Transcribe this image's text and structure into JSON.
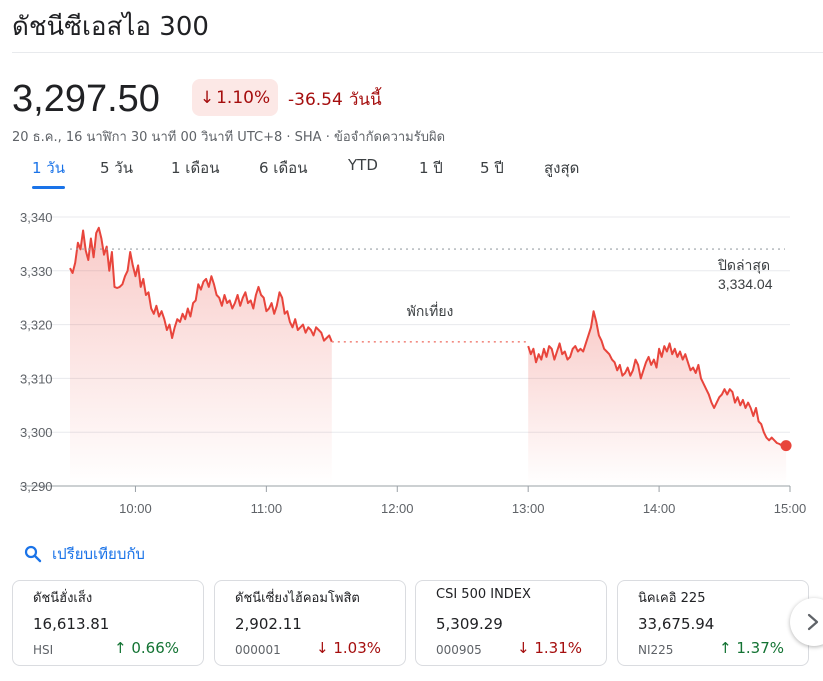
{
  "header": {
    "title": "ดัชนีซีเอสไอ 300",
    "price": "3,297.50",
    "change_pct": "1.10%",
    "change_abs": "-36.54",
    "change_period": "วันนี้",
    "meta": "20 ธ.ค., 16 นาฬิกา 30 นาที 00 วินาที UTC+8 · SHA · ข้อจำกัดความรับผิด"
  },
  "tabs": [
    {
      "label": "1 วัน",
      "active": true
    },
    {
      "label": "5 วัน",
      "active": false
    },
    {
      "label": "1 เดือน",
      "active": false
    },
    {
      "label": "6 เดือน",
      "active": false
    },
    {
      "label": "YTD",
      "active": false
    },
    {
      "label": "1 ปี",
      "active": false
    },
    {
      "label": "5 ปี",
      "active": false
    },
    {
      "label": "สูงสุด",
      "active": false
    }
  ],
  "colors": {
    "line": "#e8453c",
    "accent": "#1a73e8",
    "up": "#137333",
    "down": "#a50e0e"
  },
  "chart_data": {
    "type": "line",
    "ylim": [
      3290,
      3340
    ],
    "y_ticks": [
      "3,340",
      "3,330",
      "3,320",
      "3,310",
      "3,300",
      "3,290"
    ],
    "x_ticks": [
      "10:00",
      "11:00",
      "12:00",
      "13:00",
      "14:00",
      "15:00"
    ],
    "x_range_hours": [
      9.5,
      15.0
    ],
    "previous_close_label": "ปิดล่าสุด",
    "previous_close_value_text": "3,334.04",
    "previous_close": 3334.04,
    "break_label": "พักเที่ยง",
    "break_value": 3316.8,
    "series": [
      {
        "segment": "morning",
        "points": [
          [
            9.5,
            3330.5
          ],
          [
            9.52,
            3329.6
          ],
          [
            9.54,
            3331.5
          ],
          [
            9.56,
            3335.2
          ],
          [
            9.58,
            3334.0
          ],
          [
            9.6,
            3337.5
          ],
          [
            9.62,
            3333.8
          ],
          [
            9.64,
            3332.0
          ],
          [
            9.66,
            3336.0
          ],
          [
            9.68,
            3332.5
          ],
          [
            9.7,
            3337.0
          ],
          [
            9.72,
            3338.0
          ],
          [
            9.74,
            3336.0
          ],
          [
            9.76,
            3333.0
          ],
          [
            9.78,
            3334.5
          ],
          [
            9.8,
            3330.0
          ],
          [
            9.82,
            3333.5
          ],
          [
            9.84,
            3327.0
          ],
          [
            9.86,
            3326.8
          ],
          [
            9.88,
            3327.0
          ],
          [
            9.9,
            3327.5
          ],
          [
            9.92,
            3329.0
          ],
          [
            9.94,
            3330.0
          ],
          [
            9.96,
            3333.5
          ],
          [
            9.98,
            3331.0
          ],
          [
            10.0,
            3329.0
          ],
          [
            10.02,
            3331.0
          ],
          [
            10.04,
            3327.0
          ],
          [
            10.06,
            3328.5
          ],
          [
            10.08,
            3325.5
          ],
          [
            10.1,
            3326.0
          ],
          [
            10.12,
            3323.0
          ],
          [
            10.14,
            3322.0
          ],
          [
            10.16,
            3323.5
          ],
          [
            10.18,
            3321.5
          ],
          [
            10.2,
            3322.5
          ],
          [
            10.22,
            3321.0
          ],
          [
            10.24,
            3319.0
          ],
          [
            10.26,
            3320.0
          ],
          [
            10.28,
            3317.5
          ],
          [
            10.3,
            3319.5
          ],
          [
            10.32,
            3321.0
          ],
          [
            10.34,
            3320.5
          ],
          [
            10.36,
            3322.0
          ],
          [
            10.38,
            3321.0
          ],
          [
            10.4,
            3323.0
          ],
          [
            10.42,
            3321.5
          ],
          [
            10.44,
            3324.0
          ],
          [
            10.46,
            3324.5
          ],
          [
            10.48,
            3327.5
          ],
          [
            10.5,
            3326.5
          ],
          [
            10.52,
            3328.0
          ],
          [
            10.54,
            3328.5
          ],
          [
            10.56,
            3327.0
          ],
          [
            10.58,
            3329.0
          ],
          [
            10.6,
            3327.5
          ],
          [
            10.62,
            3325.5
          ],
          [
            10.64,
            3325.0
          ],
          [
            10.66,
            3323.5
          ],
          [
            10.68,
            3325.5
          ],
          [
            10.7,
            3324.0
          ],
          [
            10.72,
            3324.5
          ],
          [
            10.74,
            3323.0
          ],
          [
            10.76,
            3324.0
          ],
          [
            10.78,
            3325.5
          ],
          [
            10.8,
            3323.5
          ],
          [
            10.82,
            3325.0
          ],
          [
            10.84,
            3326.0
          ],
          [
            10.86,
            3324.0
          ],
          [
            10.88,
            3324.5
          ],
          [
            10.9,
            3323.0
          ],
          [
            10.92,
            3325.5
          ],
          [
            10.94,
            3327.0
          ],
          [
            10.96,
            3325.5
          ],
          [
            10.98,
            3325.0
          ],
          [
            11.0,
            3322.5
          ],
          [
            11.02,
            3323.0
          ],
          [
            11.04,
            3324.0
          ],
          [
            11.06,
            3322.0
          ],
          [
            11.08,
            3323.5
          ],
          [
            11.1,
            3326.0
          ],
          [
            11.12,
            3325.0
          ],
          [
            11.14,
            3322.0
          ],
          [
            11.16,
            3322.5
          ],
          [
            11.18,
            3320.5
          ],
          [
            11.2,
            3319.5
          ],
          [
            11.22,
            3321.0
          ],
          [
            11.24,
            3319.0
          ],
          [
            11.26,
            3319.5
          ],
          [
            11.28,
            3320.0
          ],
          [
            11.3,
            3318.5
          ],
          [
            11.32,
            3319.5
          ],
          [
            11.34,
            3319.0
          ],
          [
            11.36,
            3318.0
          ],
          [
            11.38,
            3319.5
          ],
          [
            11.4,
            3319.0
          ],
          [
            11.42,
            3318.5
          ],
          [
            11.44,
            3317.0
          ],
          [
            11.46,
            3317.5
          ],
          [
            11.48,
            3318.0
          ],
          [
            11.5,
            3316.8
          ]
        ]
      },
      {
        "segment": "afternoon",
        "points": [
          [
            13.0,
            3316.0
          ],
          [
            13.02,
            3314.5
          ],
          [
            13.04,
            3315.5
          ],
          [
            13.06,
            3313.0
          ],
          [
            13.08,
            3314.5
          ],
          [
            13.1,
            3313.5
          ],
          [
            13.12,
            3315.5
          ],
          [
            13.14,
            3314.0
          ],
          [
            13.16,
            3316.0
          ],
          [
            13.18,
            3315.5
          ],
          [
            13.2,
            3313.5
          ],
          [
            13.22,
            3315.0
          ],
          [
            13.24,
            3316.5
          ],
          [
            13.26,
            3314.5
          ],
          [
            13.28,
            3315.0
          ],
          [
            13.3,
            3313.5
          ],
          [
            13.32,
            3314.0
          ],
          [
            13.34,
            3315.5
          ],
          [
            13.36,
            3316.0
          ],
          [
            13.38,
            3315.0
          ],
          [
            13.4,
            3315.5
          ],
          [
            13.42,
            3315.0
          ],
          [
            13.44,
            3316.5
          ],
          [
            13.46,
            3318.0
          ],
          [
            13.48,
            3319.5
          ],
          [
            13.5,
            3322.5
          ],
          [
            13.52,
            3320.5
          ],
          [
            13.54,
            3318.0
          ],
          [
            13.56,
            3317.0
          ],
          [
            13.58,
            3315.5
          ],
          [
            13.6,
            3315.0
          ],
          [
            13.62,
            3314.5
          ],
          [
            13.64,
            3313.5
          ],
          [
            13.66,
            3313.0
          ],
          [
            13.68,
            3311.5
          ],
          [
            13.7,
            3312.5
          ],
          [
            13.72,
            3310.5
          ],
          [
            13.74,
            3311.0
          ],
          [
            13.76,
            3312.0
          ],
          [
            13.78,
            3310.5
          ],
          [
            13.8,
            3311.5
          ],
          [
            13.82,
            3313.5
          ],
          [
            13.84,
            3312.5
          ],
          [
            13.86,
            3310.0
          ],
          [
            13.88,
            3311.5
          ],
          [
            13.9,
            3313.0
          ],
          [
            13.92,
            3314.0
          ],
          [
            13.94,
            3312.5
          ],
          [
            13.96,
            3313.5
          ],
          [
            13.98,
            3312.0
          ],
          [
            14.0,
            3315.5
          ],
          [
            14.02,
            3314.0
          ],
          [
            14.04,
            3316.0
          ],
          [
            14.06,
            3315.0
          ],
          [
            14.08,
            3316.5
          ],
          [
            14.1,
            3314.5
          ],
          [
            14.12,
            3315.5
          ],
          [
            14.14,
            3314.0
          ],
          [
            14.16,
            3315.0
          ],
          [
            14.18,
            3313.5
          ],
          [
            14.2,
            3314.5
          ],
          [
            14.22,
            3313.0
          ],
          [
            14.24,
            3311.5
          ],
          [
            14.26,
            3312.0
          ],
          [
            14.28,
            3311.0
          ],
          [
            14.3,
            3312.5
          ],
          [
            14.32,
            3310.0
          ],
          [
            14.34,
            3309.0
          ],
          [
            14.36,
            3308.0
          ],
          [
            14.38,
            3307.0
          ],
          [
            14.4,
            3305.5
          ],
          [
            14.42,
            3304.5
          ],
          [
            14.44,
            3305.5
          ],
          [
            14.46,
            3306.5
          ],
          [
            14.48,
            3307.0
          ],
          [
            14.5,
            3308.0
          ],
          [
            14.52,
            3307.0
          ],
          [
            14.54,
            3308.0
          ],
          [
            14.56,
            3307.5
          ],
          [
            14.58,
            3305.5
          ],
          [
            14.6,
            3306.5
          ],
          [
            14.62,
            3305.0
          ],
          [
            14.64,
            3306.0
          ],
          [
            14.66,
            3304.5
          ],
          [
            14.68,
            3305.5
          ],
          [
            14.7,
            3304.5
          ],
          [
            14.72,
            3303.0
          ],
          [
            14.74,
            3304.5
          ],
          [
            14.76,
            3302.0
          ],
          [
            14.78,
            3301.5
          ],
          [
            14.8,
            3300.0
          ],
          [
            14.82,
            3299.0
          ],
          [
            14.84,
            3298.5
          ],
          [
            14.86,
            3299.0
          ],
          [
            14.88,
            3298.5
          ],
          [
            14.9,
            3298.0
          ],
          [
            14.92,
            3297.8
          ],
          [
            14.94,
            3297.5
          ],
          [
            14.96,
            3297.6
          ],
          [
            14.97,
            3297.5
          ]
        ]
      }
    ]
  },
  "compare": {
    "label": "เปรียบเทียบกับ"
  },
  "cards": [
    {
      "name": "ดัชนีฮั่งเส็ง",
      "price": "16,613.81",
      "code": "HSI",
      "change": "0.66%",
      "direction": "up"
    },
    {
      "name": "ดัชนีเซี่ยงไฮ้คอมโพสิต",
      "price": "2,902.11",
      "code": "000001",
      "change": "1.03%",
      "direction": "down"
    },
    {
      "name": "CSI 500 INDEX",
      "price": "5,309.29",
      "code": "000905",
      "change": "1.31%",
      "direction": "down"
    },
    {
      "name": "นิคเคอิ 225",
      "price": "33,675.94",
      "code": "NI225",
      "change": "1.37%",
      "direction": "up"
    }
  ]
}
